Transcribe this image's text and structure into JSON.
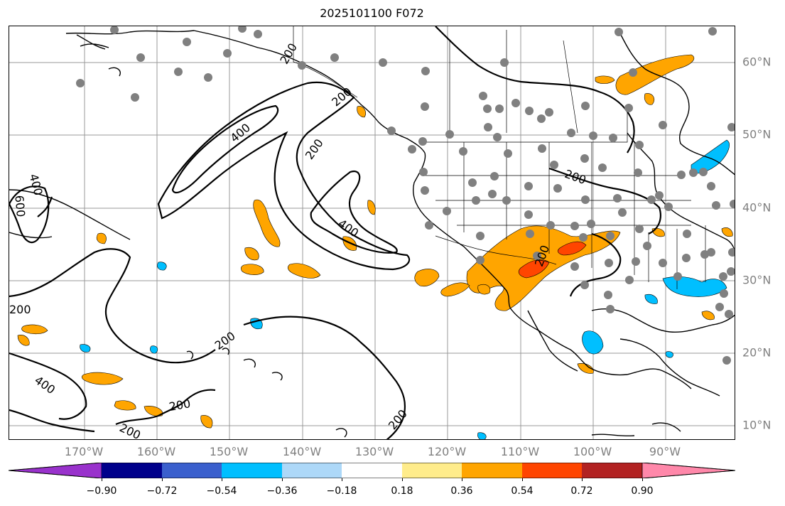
{
  "title": "2025101100 F072",
  "lat_labels": [
    "60°N",
    "50°N",
    "40°N",
    "30°N",
    "20°N",
    "10°N"
  ],
  "lon_labels": [
    "170°W",
    "160°W",
    "150°W",
    "140°W",
    "130°W",
    "120°W",
    "110°W",
    "100°W",
    "90°W"
  ],
  "contour_labels": {
    "c400a": "400",
    "c400b": "400",
    "c400c": "400",
    "c400d": "400",
    "c600": "600",
    "c200a": "200",
    "c200b": "200",
    "c200c": "200",
    "c200d": "200",
    "c200e": "200",
    "c200f": "200",
    "c200g": "200",
    "c200h": "200",
    "c200i": "200",
    "c200j": "200"
  },
  "colorbar": {
    "ticks": [
      "−0.90",
      "−0.72",
      "−0.54",
      "−0.36",
      "−0.18",
      "0.18",
      "0.36",
      "0.54",
      "0.72",
      "0.90"
    ],
    "colors": [
      "#9932cc",
      "#00008b",
      "#3a5fcd",
      "#00bfff",
      "#add8f8",
      "#ffffff",
      "#ffec8b",
      "#ffa500",
      "#ff4500",
      "#b22222",
      "#ff88aa"
    ]
  },
  "colors": {
    "gridline": "#999999",
    "station": "#808080",
    "contour": "#000000"
  }
}
